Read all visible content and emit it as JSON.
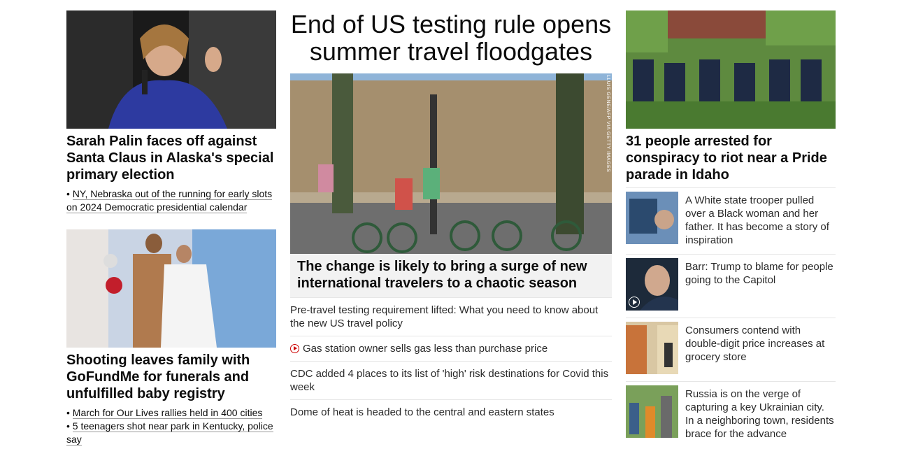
{
  "left": {
    "story1": {
      "headline": "Sarah Palin faces off against Santa Claus in Alaska's special primary election",
      "bullets": [
        "NY, Nebraska out of the running for early slots on 2024 Democratic presidential calendar"
      ]
    },
    "story2": {
      "headline": "Shooting leaves family with GoFundMe for funerals and unfulfilled baby registry",
      "bullets": [
        "March for Our Lives rallies held in 400 cities",
        "5 teenagers shot near park in Kentucky, police say"
      ]
    }
  },
  "center": {
    "title": "End of US testing rule opens summer travel floodgates",
    "photo_credit": "LLUIS GENE/AFP VIA GETTY IMAGES",
    "caption": "The change is likely to bring a surge of new international travelers to a chaotic season",
    "links": [
      {
        "text": "Pre-travel testing requirement lifted: What you need to know about the new US travel policy",
        "video": false
      },
      {
        "text": "Gas station owner sells gas less than purchase price",
        "video": true
      },
      {
        "text": "CDC added 4 places to its list of 'high' risk destinations for Covid this week",
        "video": false
      },
      {
        "text": "Dome of heat is headed to the central and eastern states",
        "video": false
      }
    ]
  },
  "right": {
    "headline": "31 people arrested for conspiracy to riot near a Pride parade in Idaho",
    "items": [
      {
        "text": "A White state trooper pulled over a Black woman and her father. It has become a story of inspiration",
        "video": false
      },
      {
        "text": "Barr: Trump to blame for people going to the Capitol",
        "video": true
      },
      {
        "text": "Consumers contend with double-digit price increases at grocery store",
        "video": false
      },
      {
        "text": "Russia is on the verge of capturing a key Ukrainian city. In a neighboring town, residents brace for the advance",
        "video": false
      }
    ]
  },
  "colors": {
    "text": "#0c0c0c",
    "muted": "#2a2a2a",
    "caption_bg": "#f2f2f2",
    "video_red": "#cc0000",
    "divider": "#e6e6e6"
  }
}
